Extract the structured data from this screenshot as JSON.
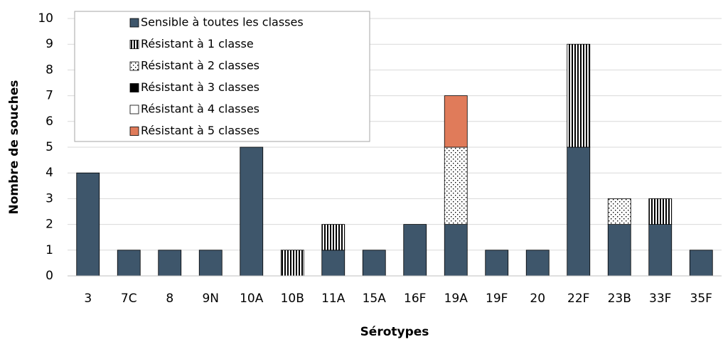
{
  "chart_data": {
    "type": "stacked-bar",
    "x_label": "Sérotypes",
    "y_label": "Nombre de souches",
    "categories": [
      "3",
      "7C",
      "8",
      "9N",
      "10A",
      "10B",
      "11A",
      "15A",
      "16F",
      "19A",
      "19F",
      "20",
      "22F",
      "23B",
      "33F",
      "35F"
    ],
    "series": [
      {
        "name": "Sensible à toutes les classes",
        "color": "#3e566b",
        "pattern": "solid",
        "values": [
          4,
          1,
          1,
          1,
          5,
          0,
          1,
          1,
          2,
          2,
          1,
          1,
          5,
          2,
          2,
          1
        ]
      },
      {
        "name": "Résistant à 1 classe",
        "color": "#000000",
        "pattern": "vertical-stripes",
        "values": [
          0,
          0,
          0,
          0,
          0,
          1,
          1,
          0,
          0,
          0,
          0,
          0,
          4,
          0,
          1,
          0
        ]
      },
      {
        "name": "Résistant à 2 classes",
        "color": "#000000",
        "pattern": "dots",
        "values": [
          0,
          0,
          0,
          0,
          0,
          0,
          0,
          0,
          0,
          3,
          0,
          0,
          0,
          1,
          0,
          0
        ]
      },
      {
        "name": "Résistant à 3 classes",
        "color": "#000000",
        "pattern": "solid",
        "values": [
          0,
          0,
          0,
          0,
          0,
          0,
          0,
          0,
          0,
          0,
          0,
          0,
          0,
          0,
          0,
          0
        ]
      },
      {
        "name": "Résistant à 4 classes",
        "color": "#ffffff",
        "pattern": "solid",
        "values": [
          0,
          0,
          0,
          0,
          0,
          0,
          0,
          0,
          0,
          0,
          0,
          0,
          0,
          0,
          0,
          0
        ]
      },
      {
        "name": "Résistant à 5 classes",
        "color": "#e07b5a",
        "pattern": "solid",
        "values": [
          0,
          0,
          0,
          0,
          0,
          0,
          0,
          0,
          0,
          2,
          0,
          0,
          0,
          0,
          0,
          0
        ]
      }
    ],
    "ylim": [
      0,
      10
    ],
    "yticks": [
      0,
      1,
      2,
      3,
      4,
      5,
      6,
      7,
      8,
      9,
      10
    ],
    "grid": true,
    "legend": "top-left"
  }
}
